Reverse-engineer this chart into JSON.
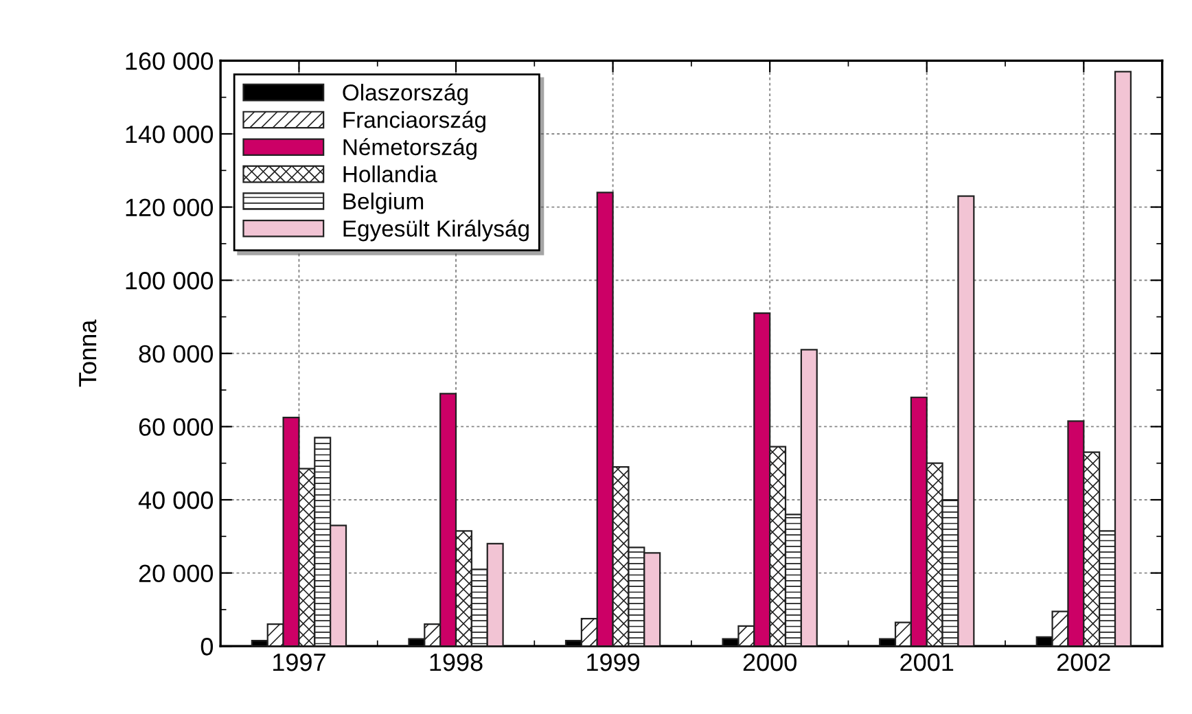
{
  "chart_data": {
    "type": "bar",
    "ylabel": "Tonna",
    "categories": [
      "1997",
      "1998",
      "1999",
      "2000",
      "2001",
      "2002"
    ],
    "series": [
      {
        "name": "Olaszország",
        "color": "#000000",
        "values": [
          1500,
          2000,
          1500,
          2000,
          2000,
          2500
        ]
      },
      {
        "name": "Franciaország",
        "color": "#222222",
        "values": [
          6000,
          6000,
          7500,
          5500,
          6500,
          9500
        ]
      },
      {
        "name": "Németország",
        "color": "#cc0066",
        "values": [
          62500,
          69000,
          124000,
          91000,
          68000,
          61500
        ]
      },
      {
        "name": "Hollandia",
        "color": "#222222",
        "values": [
          48500,
          31500,
          49000,
          54500,
          50000,
          53000
        ]
      },
      {
        "name": "Belgium",
        "color": "#222222",
        "values": [
          57000,
          21000,
          27000,
          36000,
          40000,
          31500
        ]
      },
      {
        "name": "Egyesült Királyság",
        "color": "#f2c4d4",
        "values": [
          33000,
          28000,
          25500,
          81000,
          123000,
          157000
        ]
      }
    ],
    "ylim": [
      0,
      160000
    ],
    "yticks": [
      {
        "value": 0,
        "label": "0"
      },
      {
        "value": 20000,
        "label": "20 000"
      },
      {
        "value": 40000,
        "label": "40 000"
      },
      {
        "value": 60000,
        "label": "60 000"
      },
      {
        "value": 80000,
        "label": "80 000"
      },
      {
        "value": 100000,
        "label": "100 000"
      },
      {
        "value": 120000,
        "label": "120 000"
      },
      {
        "value": 140000,
        "label": "140 000"
      },
      {
        "value": 160000,
        "label": "160 000"
      }
    ],
    "grid": true,
    "legend": "top left"
  }
}
